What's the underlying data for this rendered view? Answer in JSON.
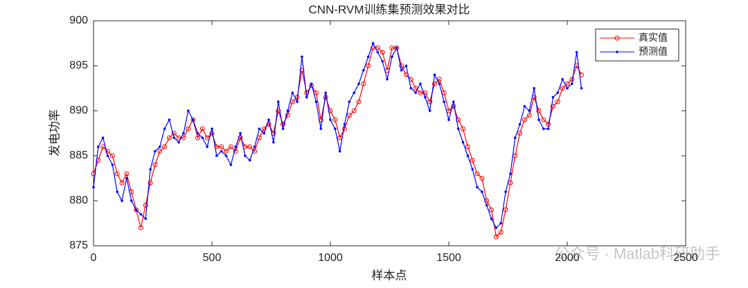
{
  "chart_data": {
    "type": "line",
    "title": "CNN-RVM训练集预测效果对比",
    "x_label": "样本点",
    "y_label": "发电功率",
    "x": [
      0,
      20,
      40,
      60,
      80,
      100,
      120,
      140,
      160,
      180,
      200,
      220,
      240,
      260,
      280,
      300,
      320,
      340,
      360,
      380,
      400,
      420,
      440,
      460,
      480,
      500,
      520,
      540,
      560,
      580,
      600,
      620,
      640,
      660,
      680,
      700,
      720,
      740,
      760,
      780,
      800,
      820,
      840,
      860,
      880,
      900,
      920,
      940,
      960,
      980,
      1000,
      1020,
      1040,
      1060,
      1080,
      1100,
      1120,
      1140,
      1160,
      1180,
      1200,
      1220,
      1240,
      1260,
      1280,
      1300,
      1320,
      1340,
      1360,
      1380,
      1400,
      1420,
      1440,
      1460,
      1480,
      1500,
      1520,
      1540,
      1560,
      1580,
      1600,
      1620,
      1640,
      1660,
      1680,
      1700,
      1720,
      1740,
      1760,
      1780,
      1800,
      1820,
      1840,
      1860,
      1880,
      1900,
      1920,
      1940,
      1960,
      1980,
      2000,
      2020,
      2040,
      2060
    ],
    "series": [
      {
        "name": "真实值",
        "color": "#ff0000",
        "marker": "circle",
        "values": [
          883,
          884.5,
          886,
          885.5,
          885,
          883,
          882,
          883,
          881,
          879,
          877,
          879.5,
          882,
          884,
          885.5,
          886,
          887,
          887.5,
          887,
          887,
          888,
          889,
          887,
          888,
          887,
          887.5,
          886,
          886,
          885.5,
          886,
          885.5,
          887,
          886,
          886,
          885.5,
          887,
          888,
          888.5,
          887.5,
          890,
          888.5,
          889.5,
          891,
          891.5,
          894.5,
          892,
          892.8,
          892,
          889,
          891.5,
          890,
          889,
          887,
          888,
          889.5,
          890,
          891,
          893,
          895,
          897,
          897,
          896.5,
          894.5,
          897,
          897,
          895,
          894,
          893.5,
          892.5,
          892,
          892,
          891,
          893,
          893.5,
          892,
          890,
          890.5,
          889,
          888,
          886,
          884.5,
          883,
          882.5,
          880,
          879,
          876,
          876.5,
          879,
          882,
          885,
          887.5,
          889,
          889.5,
          891.5,
          890,
          889,
          888.5,
          890.5,
          891,
          892.5,
          893,
          893.5,
          895,
          894
        ]
      },
      {
        "name": "预测值",
        "color": "#0000ff",
        "marker": "dot",
        "values": [
          881.5,
          886,
          887,
          885,
          884,
          881,
          880,
          882.5,
          880,
          879,
          878.5,
          878,
          883.5,
          885.5,
          886,
          888,
          889,
          887,
          886.5,
          887.5,
          890,
          889,
          887.5,
          887,
          886,
          888,
          885,
          885.5,
          885,
          884,
          886,
          887.5,
          885,
          884.5,
          886,
          888,
          887.5,
          889,
          886.5,
          891,
          888,
          890,
          892,
          891,
          896,
          891.5,
          893,
          891,
          888,
          892,
          889,
          888,
          885.5,
          888.5,
          891,
          892,
          893,
          894.5,
          896,
          897.5,
          896.5,
          895.5,
          893.5,
          896,
          897,
          894.5,
          895,
          892.5,
          892,
          893,
          891.5,
          890,
          894,
          893,
          891,
          889,
          891,
          888,
          886.5,
          885,
          883.5,
          881.5,
          881,
          879.5,
          878,
          877,
          877.5,
          881,
          883,
          887,
          888.5,
          890.5,
          890,
          892.5,
          889,
          888,
          888,
          891.5,
          892,
          893.5,
          892.5,
          893,
          896.5,
          892.5
        ]
      }
    ],
    "xlim": [
      0,
      2500
    ],
    "xticks": [
      0,
      500,
      1000,
      1500,
      2000,
      2500
    ],
    "ylim": [
      875,
      900
    ],
    "yticks": [
      875,
      880,
      885,
      890,
      895,
      900
    ],
    "grid": false,
    "legend": "upper right"
  },
  "watermark": "公众号 · Matlab科研助手"
}
